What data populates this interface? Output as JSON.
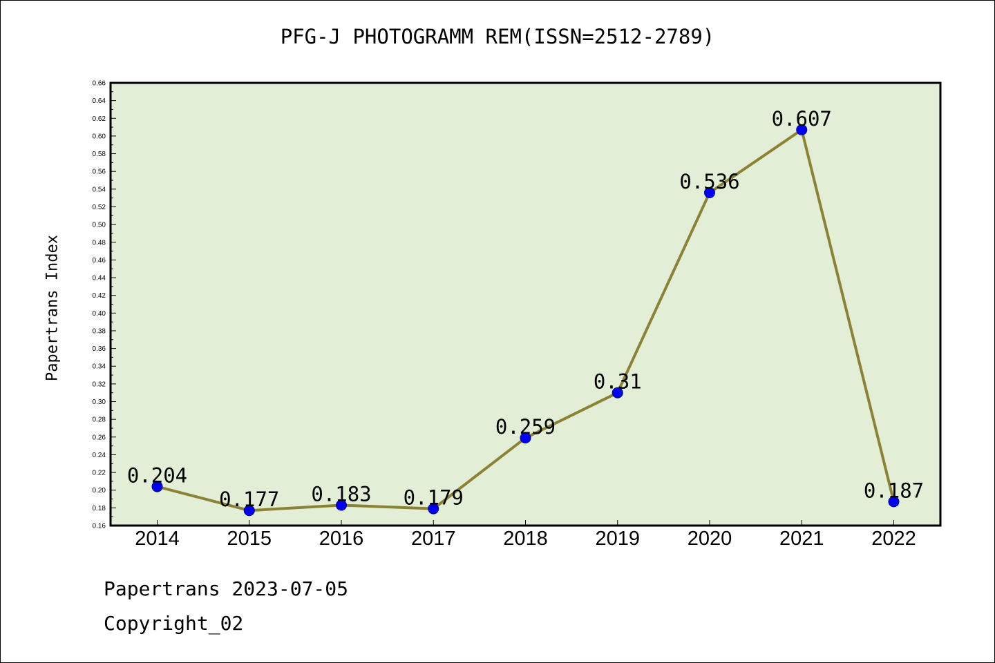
{
  "chart_data": {
    "type": "line",
    "title": "PFG-J PHOTOGRAMM REM(ISSN=2512-2789)",
    "xlabel": "",
    "ylabel": "Papertrans Index",
    "categories": [
      "2014",
      "2015",
      "2016",
      "2017",
      "2018",
      "2019",
      "2020",
      "2021",
      "2022"
    ],
    "values": [
      0.204,
      0.177,
      0.183,
      0.179,
      0.259,
      0.31,
      0.536,
      0.607,
      0.187
    ],
    "data_labels": [
      "0.204",
      "0.177",
      "0.183",
      "0.179",
      "0.259",
      "0.31",
      "0.536",
      "0.607",
      "0.187"
    ],
    "ylim": [
      0.16,
      0.66
    ],
    "ytick_labels": [
      "0.16",
      "0.18",
      "0.20",
      "0.22",
      "0.24",
      "0.26",
      "0.28",
      "0.30",
      "0.32",
      "0.34",
      "0.36",
      "0.38",
      "0.40",
      "0.42",
      "0.44",
      "0.46",
      "0.48",
      "0.50",
      "0.52",
      "0.54",
      "0.56",
      "0.58",
      "0.60",
      "0.62",
      "0.64",
      "0.66"
    ],
    "grid": false,
    "colors": {
      "plot_background": "#e2efd6",
      "line": "#8b8236",
      "marker": "#0000ee"
    }
  },
  "footer": {
    "line1": "Papertrans 2023-07-05",
    "line2": "Copyright_02"
  }
}
